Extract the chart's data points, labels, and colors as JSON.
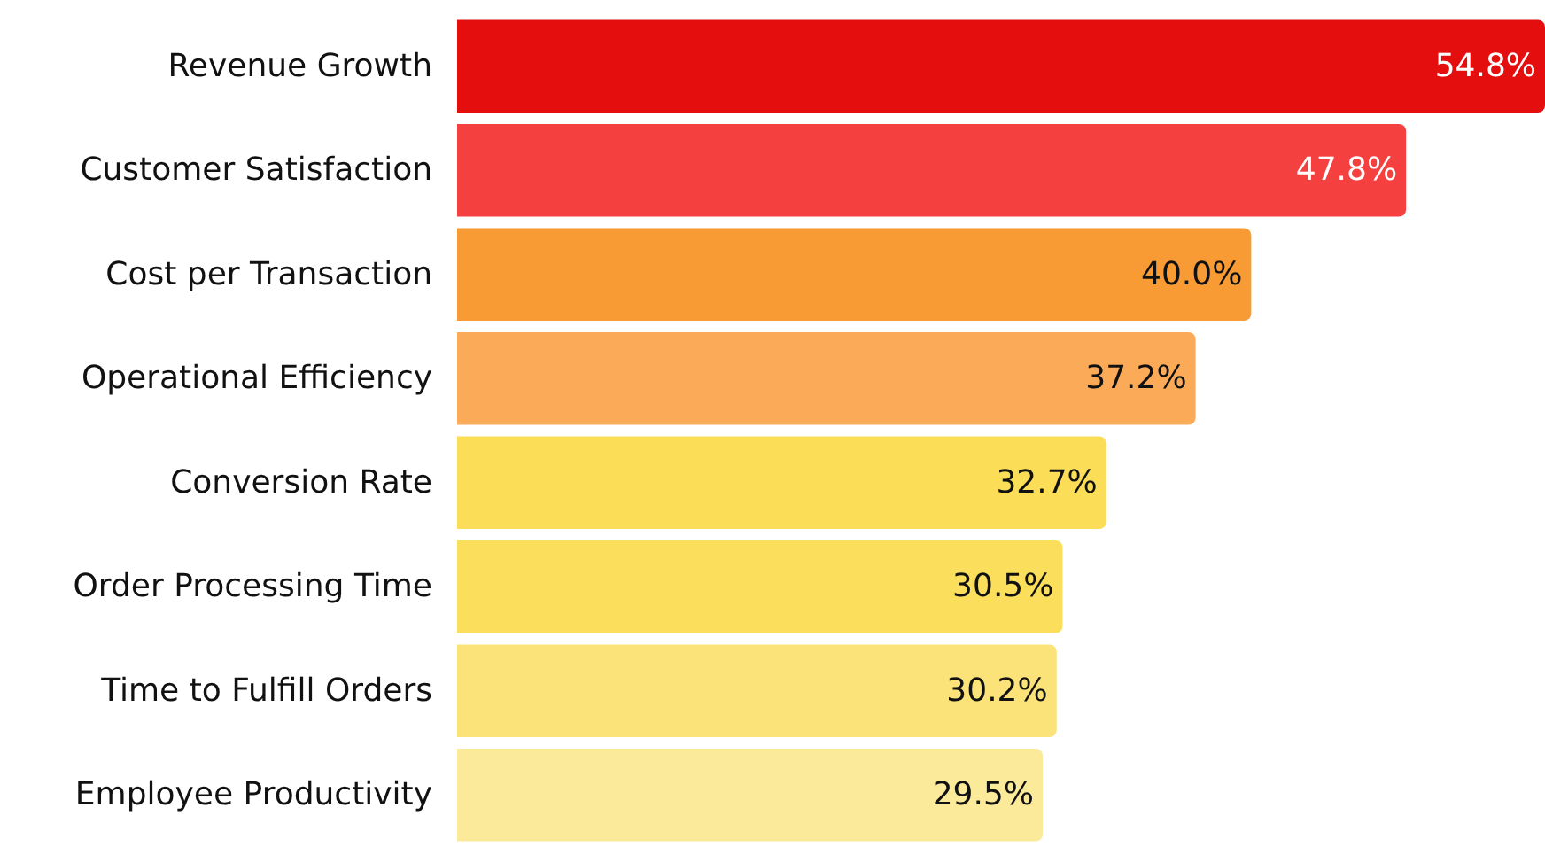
{
  "chart_data": {
    "type": "bar",
    "orientation": "horizontal",
    "value_labels": [
      "54.8%",
      "47.8%",
      "40.0%",
      "37.2%",
      "32.7%",
      "30.5%",
      "30.2%",
      "29.5%"
    ],
    "categories": [
      "Revenue Growth",
      "Customer Satisfaction",
      "Cost per Transaction",
      "Operational Efficiency",
      "Conversion Rate",
      "Order Processing Time",
      "Time to Fulfill Orders",
      "Employee Productivity"
    ],
    "values": [
      54.8,
      47.8,
      40.0,
      37.2,
      32.7,
      30.5,
      30.2,
      29.5
    ],
    "colors": [
      "#e40e0e",
      "#f54040",
      "#f99b35",
      "#fbab58",
      "#fbdd58",
      "#fbdf5c",
      "#fbe37a",
      "#fbea9a"
    ]
  }
}
